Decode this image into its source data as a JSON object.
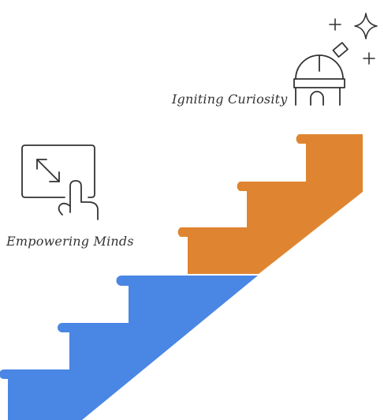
{
  "labels": {
    "upper": "Igniting Curiosity",
    "lower": "Empowering Minds"
  },
  "icons": {
    "upper": "observatory-icon",
    "lower": "touch-expand-icon",
    "sparkles": [
      "plus-sparkle-icon",
      "four-point-star-icon",
      "plus-sparkle-icon"
    ]
  },
  "colors": {
    "upper_stair": "#DF8532",
    "lower_stair": "#4A86E4",
    "icon_stroke": "#333333",
    "text": "#333333"
  }
}
